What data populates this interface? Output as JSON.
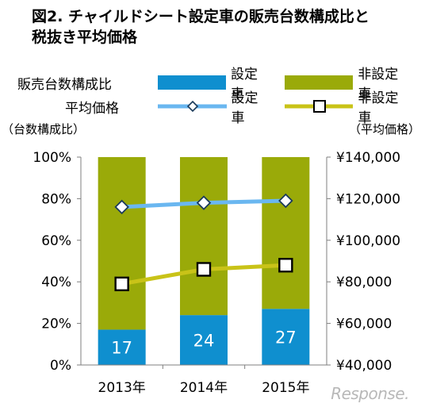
{
  "title": {
    "line1": "図2. チャイルドシート設定車の販売台数構成比と",
    "line2": "税抜き平均価格"
  },
  "legend": {
    "sales_label": "販売台数構成比",
    "price_label": "平均価格",
    "equipped": "設定車",
    "non_equipped": "非設定車"
  },
  "left_axis_note": "（台数構成比）",
  "right_axis_note": "（平均価格）",
  "watermark": "Response.",
  "colors": {
    "equipped_bar": "#0f8fcf",
    "non_equipped_bar": "#9aaa09",
    "equipped_line": "#6ab7f0",
    "non_equipped_line": "#c9c318"
  },
  "chart_data": {
    "type": "bar",
    "categories": [
      "2013年",
      "2014年",
      "2015年"
    ],
    "series": [
      {
        "name": "設定車",
        "axis": "left",
        "kind": "stacked-bar",
        "values": [
          17,
          24,
          27
        ]
      },
      {
        "name": "非設定車",
        "axis": "left",
        "kind": "stacked-bar",
        "values": [
          83,
          76,
          73
        ]
      },
      {
        "name": "設定車",
        "axis": "right",
        "kind": "line",
        "marker": "diamond",
        "values": [
          116000,
          118000,
          119000
        ]
      },
      {
        "name": "非設定車",
        "axis": "right",
        "kind": "line",
        "marker": "square",
        "values": [
          79000,
          86000,
          88000
        ]
      }
    ],
    "bar_labels": [
      "17",
      "24",
      "27"
    ],
    "left_axis": {
      "ylim": [
        0,
        100
      ],
      "ticks": [
        "0%",
        "20%",
        "40%",
        "60%",
        "80%",
        "100%"
      ]
    },
    "right_axis": {
      "ylim": [
        40000,
        140000
      ],
      "ticks": [
        "¥40,000",
        "¥60,000",
        "¥80,000",
        "¥100,000",
        "¥120,000",
        "¥140,000"
      ]
    },
    "grid": false
  }
}
